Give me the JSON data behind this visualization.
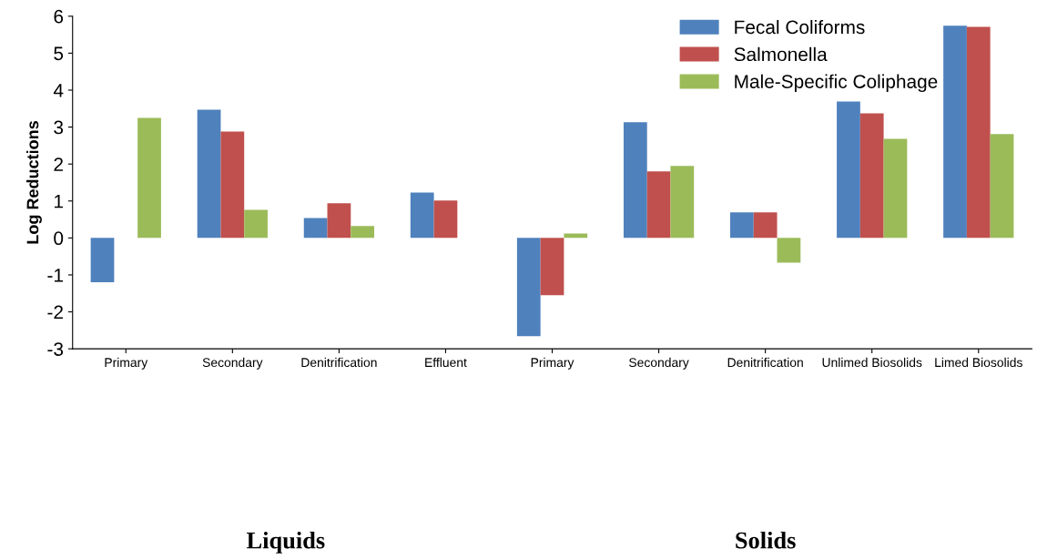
{
  "chart_data": {
    "type": "bar",
    "ylabel": "Log Reductions",
    "categories": [
      "Primary",
      "Secondary",
      "Denitrification",
      "Effluent",
      "Primary",
      "Secondary",
      "Denitrification",
      "Unlimed Biosolids",
      "Limed Biosolids"
    ],
    "series": [
      {
        "name": "Fecal Coliforms",
        "color": "#4f81bd",
        "values": [
          -1.2,
          3.47,
          0.54,
          1.23,
          -2.66,
          3.13,
          0.69,
          3.69,
          5.74
        ]
      },
      {
        "name": "Salmonella",
        "color": "#c0504d",
        "values": [
          0.0,
          2.88,
          0.94,
          1.01,
          -1.55,
          1.8,
          0.69,
          3.37,
          5.71
        ]
      },
      {
        "name": "Male-Specific Coliphage",
        "color": "#9bbb59",
        "values": [
          3.25,
          0.76,
          0.32,
          0.0,
          0.12,
          1.95,
          -0.67,
          2.68,
          2.81
        ]
      }
    ],
    "ylim": [
      -3,
      6
    ],
    "yticks": [
      -3,
      -2,
      -1,
      0,
      1,
      2,
      3,
      4,
      5,
      6
    ],
    "annotations": [
      "Liquids",
      "Solids"
    ],
    "grid": false,
    "legend": "top right"
  }
}
